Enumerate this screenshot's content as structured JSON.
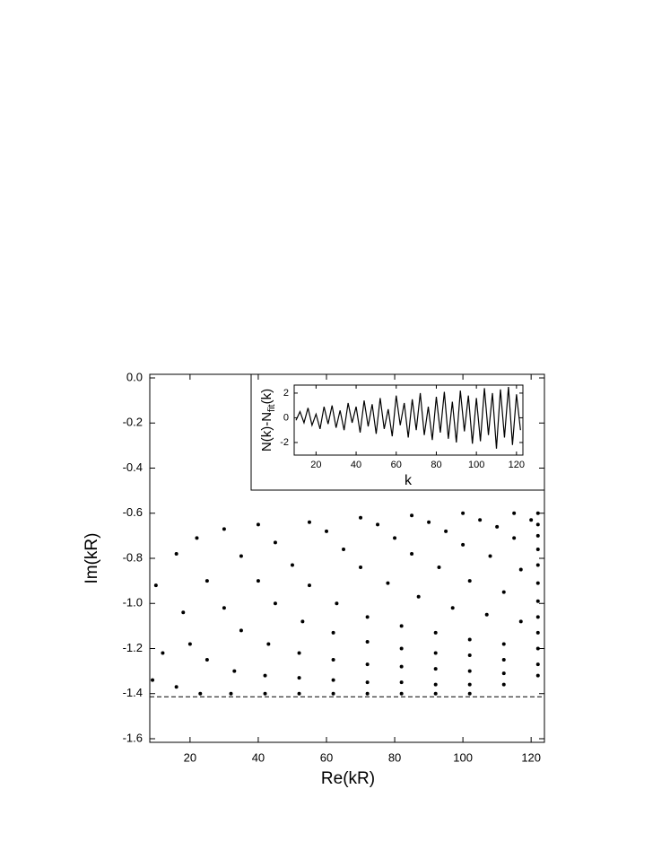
{
  "chart_data": [
    {
      "type": "scatter",
      "xlabel": "Re(kR)",
      "ylabel": "Im(kR)",
      "x": [
        10,
        16,
        22,
        30,
        40,
        55,
        70,
        85,
        100,
        115,
        122,
        12,
        18,
        25,
        35,
        45,
        60,
        75,
        90,
        105,
        120,
        9,
        20,
        30,
        40,
        50,
        65,
        80,
        95,
        110,
        122,
        16,
        25,
        35,
        45,
        55,
        70,
        85,
        100,
        115,
        122,
        23,
        33,
        43,
        53,
        63,
        78,
        93,
        108,
        122,
        32,
        42,
        52,
        62,
        72,
        87,
        102,
        117,
        122,
        42,
        52,
        62,
        72,
        82,
        97,
        112,
        122,
        52,
        62,
        72,
        82,
        92,
        107,
        122,
        62,
        72,
        82,
        92,
        102,
        117,
        122,
        72,
        82,
        92,
        102,
        112,
        122,
        82,
        92,
        102,
        112,
        122,
        92,
        102,
        112,
        122,
        102,
        112,
        122
      ],
      "y": [
        -0.92,
        -0.78,
        -0.71,
        -0.67,
        -0.65,
        -0.64,
        -0.62,
        -0.61,
        -0.6,
        -0.6,
        -0.6,
        -1.22,
        -1.04,
        -0.9,
        -0.79,
        -0.73,
        -0.68,
        -0.65,
        -0.64,
        -0.63,
        -0.63,
        -1.34,
        -1.18,
        -1.02,
        -0.9,
        -0.83,
        -0.76,
        -0.71,
        -0.68,
        -0.66,
        -0.65,
        -1.37,
        -1.25,
        -1.12,
        -1.0,
        -0.92,
        -0.84,
        -0.78,
        -0.74,
        -0.71,
        -0.7,
        -1.4,
        -1.3,
        -1.18,
        -1.08,
        -1.0,
        -0.91,
        -0.84,
        -0.79,
        -0.76,
        -1.4,
        -1.32,
        -1.22,
        -1.13,
        -1.06,
        -0.97,
        -0.9,
        -0.85,
        -0.83,
        -1.4,
        -1.33,
        -1.25,
        -1.17,
        -1.1,
        -1.02,
        -0.95,
        -0.91,
        -1.4,
        -1.34,
        -1.27,
        -1.2,
        -1.13,
        -1.05,
        -0.99,
        -1.4,
        -1.35,
        -1.28,
        -1.22,
        -1.16,
        -1.08,
        -1.06,
        -1.4,
        -1.35,
        -1.29,
        -1.23,
        -1.18,
        -1.13,
        -1.4,
        -1.36,
        -1.3,
        -1.25,
        -1.2,
        -1.4,
        -1.36,
        -1.31,
        -1.27,
        -1.4,
        -1.36,
        -1.32
      ],
      "color": "#000000",
      "hline": -1.414,
      "xlim": [
        8.2,
        123.9
      ],
      "ylim": [
        -1.616,
        0.016
      ],
      "xticks": [
        20,
        40,
        60,
        80,
        100,
        120
      ],
      "yticks": [
        {
          "value": 0,
          "label": "0.0"
        },
        -0.2,
        -0.4,
        -0.6,
        -0.8,
        {
          "value": -1,
          "label": "-1.0"
        },
        -1.2,
        -1.4,
        -1.6
      ]
    },
    {
      "type": "line",
      "xlabel": "k",
      "ylabel": "N(k)-N",
      "ylabel_sub": "fit",
      "ylabel_end": "(k)",
      "x": [
        10,
        12,
        14,
        16,
        18,
        20,
        22,
        24,
        26,
        28,
        30,
        32,
        34,
        36,
        38,
        40,
        42,
        44,
        46,
        48,
        50,
        52,
        54,
        56,
        58,
        60,
        62,
        64,
        66,
        68,
        70,
        72,
        74,
        76,
        78,
        80,
        82,
        84,
        86,
        88,
        90,
        92,
        94,
        96,
        98,
        100,
        102,
        104,
        106,
        108,
        110,
        112,
        114,
        116,
        118,
        120,
        122
      ],
      "values": [
        -0.2,
        0.5,
        -0.4,
        0.8,
        -0.6,
        0.3,
        -0.9,
        0.9,
        -0.5,
        1.0,
        -0.8,
        0.6,
        -1.0,
        1.2,
        -0.4,
        0.9,
        -1.2,
        1.4,
        -0.7,
        1.1,
        -1.3,
        1.6,
        -0.9,
        0.7,
        -1.5,
        1.8,
        -0.6,
        1.2,
        -1.6,
        1.5,
        -1.0,
        2.0,
        -1.4,
        0.9,
        -1.8,
        1.7,
        -1.2,
        2.1,
        -1.7,
        1.3,
        -2.0,
        2.2,
        -1.1,
        1.8,
        -2.1,
        1.6,
        -1.9,
        2.4,
        -1.4,
        2.0,
        -2.5,
        2.3,
        -1.6,
        2.5,
        -2.2,
        1.9,
        -1.0
      ],
      "color": "#000000",
      "xlim": [
        9.1,
        123.2
      ],
      "ylim": [
        -3.02,
        2.65
      ],
      "xticks": [
        20,
        40,
        60,
        80,
        100,
        120
      ],
      "yticks": [
        2,
        0,
        -2
      ]
    }
  ]
}
